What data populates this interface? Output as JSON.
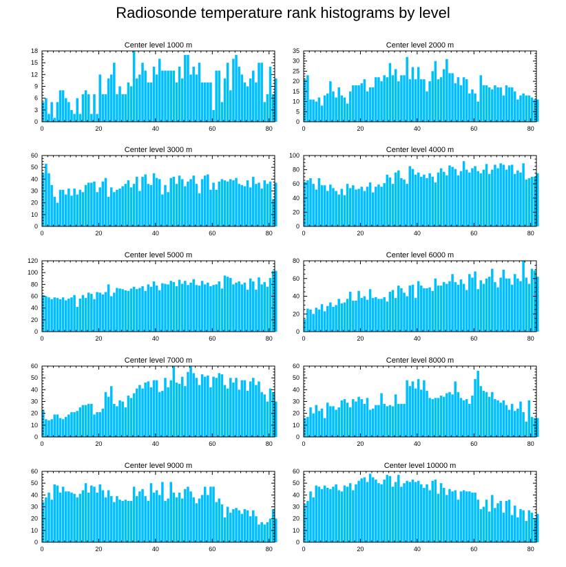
{
  "title": "Radiosonde temperature rank histograms by level",
  "colors": {
    "bar": "#00bfff",
    "bar_edge": "#ffffff",
    "axis": "#000000"
  },
  "chart_data": [
    {
      "type": "bar",
      "title": "Center level 1000 m",
      "xlim": [
        0,
        82
      ],
      "ylim": [
        0,
        18
      ],
      "xticks": [
        0,
        20,
        40,
        60,
        80
      ],
      "yticks": [
        0,
        3,
        6,
        9,
        12,
        15,
        18
      ],
      "values": [
        5,
        6,
        2,
        5,
        1,
        5,
        8,
        8,
        6,
        5,
        3,
        2,
        6,
        2,
        7,
        8,
        7,
        2,
        7,
        2,
        12,
        7,
        7,
        11,
        12,
        15,
        7,
        9,
        7,
        7,
        10,
        9,
        18,
        11,
        12,
        15,
        13,
        10,
        10,
        14,
        12,
        16,
        13,
        13,
        13,
        13,
        13,
        10,
        14,
        11,
        17,
        17,
        12,
        14,
        12,
        15,
        10,
        10,
        10,
        10,
        3,
        13,
        13,
        5,
        11,
        15,
        8,
        16,
        17,
        14,
        12,
        10,
        9,
        11,
        13,
        10,
        15,
        15,
        5,
        7,
        14,
        7,
        11
      ]
    },
    {
      "type": "bar",
      "title": "Center level 2000 m",
      "xlim": [
        0,
        82
      ],
      "ylim": [
        0,
        35
      ],
      "xticks": [
        0,
        20,
        40,
        60,
        80
      ],
      "yticks": [
        0,
        5,
        10,
        15,
        20,
        25,
        30,
        35
      ],
      "values": [
        21,
        23,
        11,
        11,
        10,
        12,
        8,
        13,
        14,
        20,
        15,
        12,
        17,
        13,
        12,
        9,
        15,
        18,
        18,
        18,
        19,
        21,
        15,
        17,
        17,
        22,
        22,
        20,
        23,
        22,
        29,
        23,
        26,
        20,
        23,
        23,
        32,
        21,
        27,
        21,
        27,
        21,
        21,
        15,
        20,
        25,
        30,
        21,
        22,
        26,
        31,
        24,
        24,
        19,
        22,
        18,
        22,
        21,
        14,
        16,
        14,
        10,
        23,
        18,
        18,
        17,
        16,
        18,
        17,
        17,
        13,
        18,
        17,
        17,
        15,
        11,
        13,
        14,
        13,
        13,
        12,
        11,
        11
      ]
    },
    {
      "type": "bar",
      "title": "Center level 3000 m",
      "xlim": [
        0,
        82
      ],
      "ylim": [
        0,
        60
      ],
      "xticks": [
        0,
        20,
        40,
        60,
        80
      ],
      "yticks": [
        0,
        10,
        20,
        30,
        40,
        50,
        60
      ],
      "values": [
        45,
        53,
        45,
        35,
        25,
        20,
        31,
        31,
        27,
        32,
        26,
        32,
        27,
        31,
        29,
        35,
        37,
        37,
        38,
        29,
        33,
        38,
        41,
        25,
        33,
        29,
        31,
        32,
        34,
        36,
        39,
        33,
        36,
        42,
        30,
        42,
        44,
        36,
        35,
        45,
        41,
        40,
        27,
        35,
        29,
        41,
        42,
        36,
        43,
        40,
        34,
        38,
        40,
        43,
        36,
        28,
        40,
        43,
        44,
        31,
        37,
        31,
        38,
        40,
        39,
        38,
        40,
        39,
        41,
        36,
        35,
        34,
        39,
        33,
        42,
        36,
        37,
        32,
        39,
        36,
        38,
        23,
        37
      ]
    },
    {
      "type": "bar",
      "title": "Center level 4000 m",
      "xlim": [
        0,
        82
      ],
      "ylim": [
        0,
        100
      ],
      "xticks": [
        0,
        20,
        40,
        60,
        80
      ],
      "yticks": [
        0,
        20,
        40,
        60,
        80,
        100
      ],
      "values": [
        63,
        65,
        68,
        60,
        52,
        68,
        58,
        58,
        50,
        59,
        54,
        50,
        45,
        53,
        44,
        60,
        54,
        58,
        52,
        53,
        56,
        50,
        56,
        62,
        48,
        56,
        59,
        56,
        61,
        73,
        69,
        60,
        76,
        79,
        68,
        66,
        60,
        85,
        81,
        73,
        76,
        70,
        73,
        68,
        75,
        70,
        62,
        76,
        82,
        77,
        72,
        86,
        84,
        81,
        72,
        78,
        92,
        80,
        76,
        82,
        85,
        78,
        75,
        80,
        88,
        74,
        80,
        87,
        82,
        89,
        87,
        80,
        86,
        87,
        74,
        79,
        76,
        89,
        66,
        68,
        70,
        70,
        75
      ]
    },
    {
      "type": "bar",
      "title": "Center level 5000 m",
      "xlim": [
        0,
        82
      ],
      "ylim": [
        0,
        120
      ],
      "xticks": [
        0,
        20,
        40,
        60,
        80
      ],
      "yticks": [
        0,
        20,
        40,
        60,
        80,
        100,
        120
      ],
      "values": [
        62,
        60,
        58,
        55,
        58,
        57,
        55,
        58,
        53,
        56,
        58,
        62,
        42,
        56,
        62,
        57,
        66,
        64,
        55,
        67,
        66,
        63,
        67,
        80,
        60,
        66,
        74,
        73,
        72,
        70,
        69,
        73,
        76,
        72,
        74,
        77,
        69,
        80,
        76,
        85,
        78,
        70,
        82,
        81,
        80,
        86,
        84,
        77,
        88,
        81,
        86,
        79,
        83,
        89,
        79,
        78,
        86,
        80,
        83,
        77,
        79,
        80,
        85,
        73,
        95,
        93,
        91,
        80,
        83,
        85,
        80,
        83,
        71,
        90,
        85,
        71,
        92,
        80,
        84,
        76,
        91,
        103,
        103
      ]
    },
    {
      "type": "bar",
      "title": "Center level 6000 m",
      "xlim": [
        0,
        82
      ],
      "ylim": [
        0,
        80
      ],
      "xticks": [
        0,
        20,
        40,
        60,
        80
      ],
      "yticks": [
        0,
        20,
        40,
        60,
        80
      ],
      "values": [
        14,
        26,
        25,
        20,
        27,
        25,
        31,
        23,
        29,
        33,
        28,
        30,
        37,
        32,
        33,
        37,
        45,
        35,
        35,
        46,
        38,
        40,
        36,
        48,
        38,
        39,
        37,
        37,
        39,
        34,
        45,
        47,
        38,
        52,
        49,
        44,
        40,
        52,
        53,
        38,
        57,
        52,
        49,
        49,
        50,
        46,
        60,
        52,
        52,
        56,
        54,
        57,
        65,
        56,
        53,
        59,
        54,
        47,
        65,
        61,
        68,
        48,
        58,
        54,
        60,
        62,
        71,
        56,
        50,
        61,
        70,
        60,
        60,
        53,
        65,
        60,
        57,
        80,
        61,
        54,
        71,
        69,
        62
      ]
    },
    {
      "type": "bar",
      "title": "Center level 7000 m",
      "xlim": [
        0,
        82
      ],
      "ylim": [
        0,
        60
      ],
      "xticks": [
        0,
        20,
        40,
        60,
        80
      ],
      "yticks": [
        0,
        10,
        20,
        30,
        40,
        50,
        60
      ],
      "values": [
        23,
        15,
        14,
        15,
        19,
        19,
        16,
        15,
        17,
        19,
        21,
        21,
        22,
        25,
        27,
        27,
        28,
        28,
        19,
        21,
        21,
        24,
        38,
        34,
        43,
        28,
        26,
        31,
        30,
        25,
        35,
        33,
        37,
        41,
        44,
        41,
        46,
        47,
        42,
        48,
        48,
        38,
        39,
        50,
        42,
        48,
        60,
        46,
        45,
        51,
        43,
        55,
        60,
        54,
        50,
        44,
        53,
        51,
        52,
        42,
        51,
        50,
        54,
        53,
        44,
        41,
        50,
        46,
        50,
        40,
        48,
        48,
        39,
        47,
        50,
        44,
        47,
        38,
        36,
        30,
        41,
        38,
        30
      ]
    },
    {
      "type": "bar",
      "title": "Center level 8000 m",
      "xlim": [
        0,
        82
      ],
      "ylim": [
        0,
        60
      ],
      "xticks": [
        0,
        20,
        40,
        60,
        80
      ],
      "yticks": [
        0,
        10,
        20,
        30,
        40,
        50,
        60
      ],
      "values": [
        16,
        17,
        25,
        20,
        27,
        22,
        24,
        16,
        29,
        26,
        26,
        23,
        25,
        31,
        32,
        29,
        25,
        32,
        30,
        34,
        32,
        28,
        33,
        23,
        24,
        27,
        27,
        37,
        28,
        26,
        27,
        26,
        36,
        28,
        28,
        28,
        48,
        43,
        47,
        41,
        49,
        40,
        48,
        39,
        33,
        32,
        33,
        33,
        35,
        34,
        37,
        38,
        36,
        47,
        38,
        33,
        31,
        32,
        28,
        35,
        49,
        56,
        43,
        39,
        38,
        34,
        38,
        32,
        31,
        29,
        31,
        27,
        23,
        28,
        22,
        24,
        30,
        21,
        13,
        31,
        17,
        16,
        16
      ]
    },
    {
      "type": "bar",
      "title": "Center level 9000 m",
      "xlim": [
        0,
        82
      ],
      "ylim": [
        0,
        60
      ],
      "xticks": [
        0,
        20,
        40,
        60,
        80
      ],
      "yticks": [
        0,
        10,
        20,
        30,
        40,
        50,
        60
      ],
      "values": [
        34,
        38,
        42,
        36,
        49,
        48,
        42,
        47,
        43,
        43,
        42,
        41,
        38,
        41,
        44,
        50,
        42,
        48,
        47,
        42,
        49,
        44,
        38,
        44,
        39,
        34,
        39,
        36,
        35,
        36,
        35,
        35,
        47,
        39,
        43,
        45,
        39,
        35,
        50,
        42,
        44,
        40,
        51,
        35,
        37,
        51,
        42,
        38,
        42,
        37,
        45,
        47,
        43,
        38,
        33,
        37,
        40,
        47,
        40,
        47,
        47,
        34,
        37,
        32,
        21,
        30,
        25,
        28,
        29,
        27,
        24,
        28,
        27,
        22,
        27,
        22,
        15,
        17,
        15,
        17,
        20,
        28,
        20
      ]
    },
    {
      "type": "bar",
      "title": "Center level 10000 m",
      "xlim": [
        0,
        82
      ],
      "ylim": [
        0,
        60
      ],
      "xticks": [
        0,
        20,
        40,
        60,
        80
      ],
      "yticks": [
        0,
        10,
        20,
        30,
        40,
        50,
        60
      ],
      "values": [
        32,
        35,
        43,
        38,
        48,
        47,
        45,
        48,
        46,
        45,
        47,
        49,
        44,
        43,
        48,
        47,
        50,
        44,
        49,
        52,
        54,
        55,
        51,
        58,
        55,
        53,
        50,
        49,
        53,
        57,
        56,
        47,
        51,
        57,
        47,
        50,
        52,
        51,
        53,
        51,
        52,
        49,
        46,
        49,
        44,
        52,
        53,
        41,
        50,
        46,
        40,
        45,
        43,
        44,
        36,
        43,
        44,
        43,
        43,
        42,
        42,
        36,
        28,
        30,
        36,
        26,
        40,
        29,
        33,
        35,
        25,
        35,
        36,
        23,
        31,
        21,
        28,
        27,
        18,
        27,
        25,
        20,
        24
      ]
    }
  ]
}
